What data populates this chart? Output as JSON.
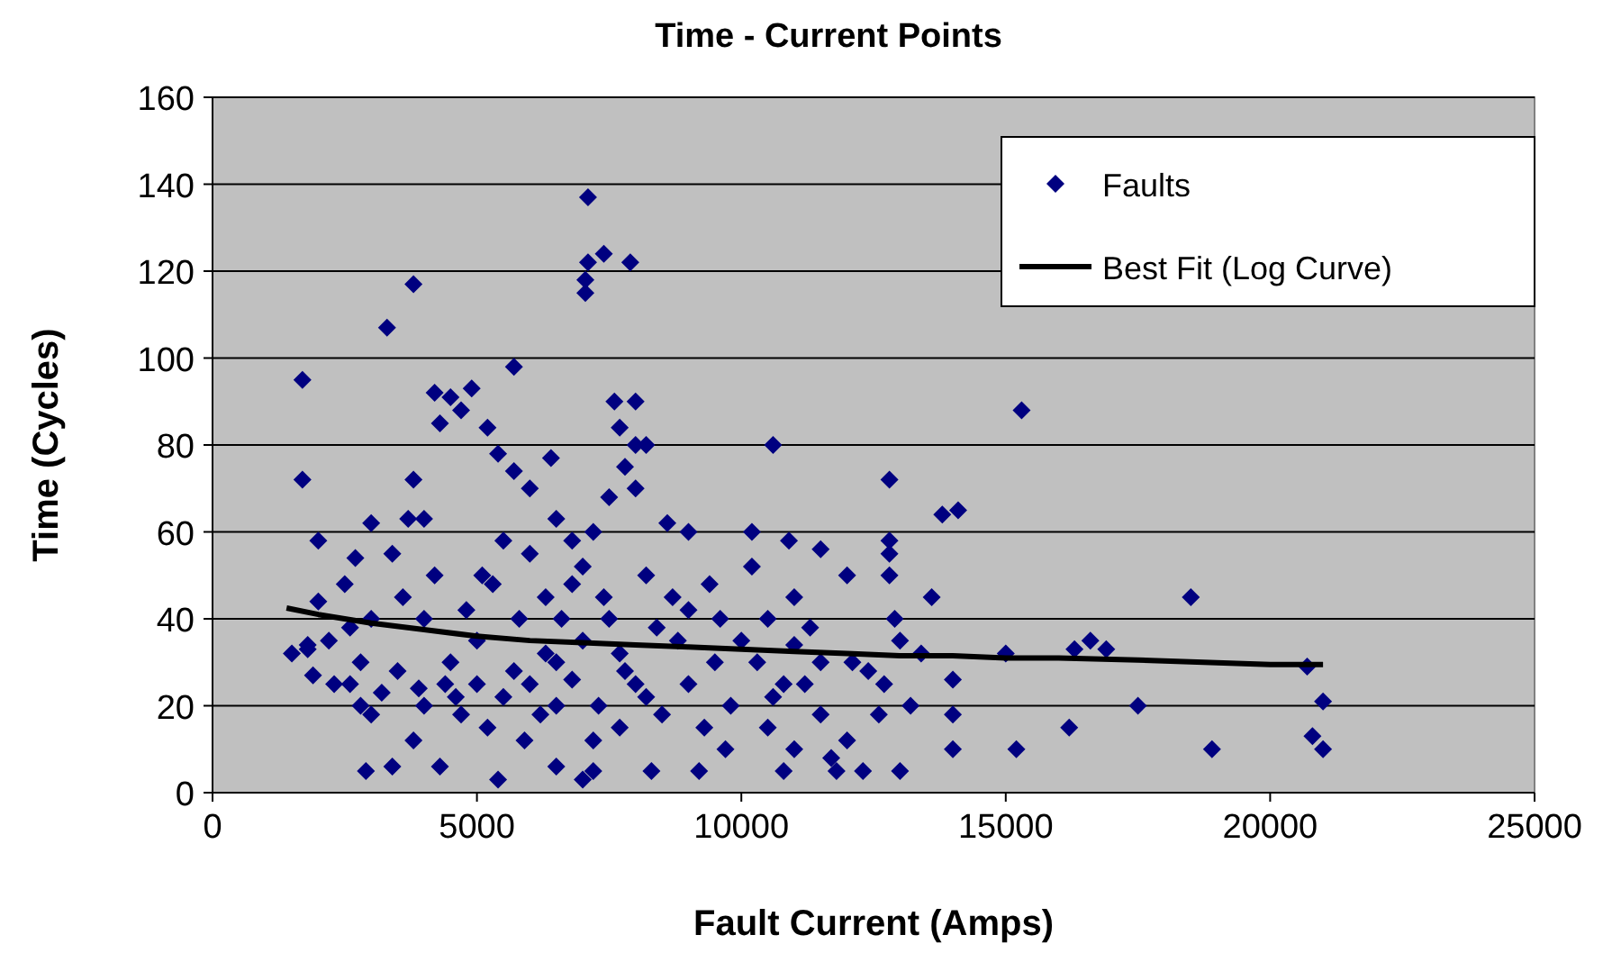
{
  "chart_data": {
    "type": "scatter",
    "title": "Time - Current Points",
    "xlabel": "Fault Current (Amps)",
    "ylabel": "Time (Cycles)",
    "xlim": [
      0,
      25000
    ],
    "xticks": [
      0,
      5000,
      10000,
      15000,
      20000,
      25000
    ],
    "ylim": [
      0,
      160
    ],
    "yticks": [
      0,
      20,
      40,
      60,
      80,
      100,
      120,
      140,
      160
    ],
    "grid": "y",
    "legend": "top right",
    "series": [
      {
        "name": "Faults",
        "marker": "diamond",
        "color": "#000080",
        "x": [
          7100,
          7100,
          7400,
          7900,
          7050,
          7050,
          3800,
          3300,
          1700,
          5700,
          1700,
          2000,
          4200,
          4500,
          4900,
          4300,
          4700,
          5200,
          3800,
          4000,
          3700,
          5700,
          5400,
          6400,
          6000,
          6500,
          7600,
          8000,
          7700,
          8000,
          8200,
          7800,
          8000,
          7500,
          8600,
          9000,
          7200,
          6800,
          10600,
          10200,
          10900,
          11500,
          12000,
          12800,
          12800,
          12800,
          12800,
          13800,
          14100,
          13600,
          15300,
          18500,
          14000,
          14000,
          14000,
          15000,
          15200,
          16300,
          16600,
          16900,
          17500,
          16200,
          18900,
          20700,
          21000,
          20800,
          21000,
          12900,
          13000,
          12700,
          12600,
          13200,
          12100,
          11200,
          11500,
          11000,
          10500,
          10800,
          11800,
          12300,
          9200,
          8300,
          7200,
          7000,
          6500,
          5400,
          4300,
          2900,
          3400,
          3800,
          2300,
          2600,
          1500,
          1800,
          2500,
          2700,
          3000,
          3400,
          3600,
          4000,
          3000,
          2600,
          2000,
          1800,
          2200,
          2800,
          3500,
          4000,
          4500,
          5000,
          5500,
          6000,
          6200,
          6500,
          7000,
          7500,
          7800,
          8200,
          8500,
          9000,
          9500,
          10000,
          10500,
          11000,
          11500,
          9800,
          9300,
          8700,
          8200,
          6800,
          6300,
          5800,
          5300,
          4800,
          4400,
          4700,
          5200,
          5900,
          6500,
          7200,
          7700,
          8000,
          8800,
          9600,
          10300,
          10800,
          11300,
          12000,
          11700,
          13000,
          4200,
          5500,
          6000,
          7000,
          7400,
          7700,
          6800,
          5700,
          5000,
          4600,
          3900,
          3200,
          2800,
          3000,
          1900,
          5100,
          6600,
          8400,
          9000,
          9400,
          10200,
          10600,
          9700,
          11000,
          13400,
          12400,
          7300,
          6300
        ],
        "values": [
          137,
          122,
          124,
          122,
          118,
          115,
          117,
          107,
          95,
          98,
          72,
          58,
          92,
          91,
          93,
          85,
          88,
          84,
          72,
          63,
          63,
          74,
          78,
          77,
          70,
          63,
          90,
          90,
          84,
          80,
          80,
          75,
          70,
          68,
          62,
          60,
          60,
          58,
          80,
          60,
          58,
          56,
          50,
          72,
          58,
          55,
          50,
          64,
          65,
          45,
          88,
          45,
          26,
          18,
          10,
          32,
          10,
          33,
          35,
          33,
          20,
          15,
          10,
          29,
          21,
          13,
          10,
          40,
          35,
          25,
          18,
          20,
          30,
          25,
          18,
          10,
          15,
          5,
          5,
          5,
          5,
          5,
          5,
          3,
          6,
          3,
          6,
          5,
          6,
          12,
          25,
          25,
          32,
          33,
          48,
          54,
          62,
          55,
          45,
          40,
          40,
          38,
          44,
          34,
          35,
          30,
          28,
          20,
          30,
          35,
          22,
          25,
          18,
          30,
          35,
          40,
          28,
          22,
          18,
          25,
          30,
          35,
          40,
          45,
          30,
          20,
          15,
          45,
          50,
          48,
          45,
          40,
          48,
          42,
          25,
          18,
          15,
          12,
          20,
          12,
          15,
          25,
          35,
          40,
          30,
          25,
          38,
          12,
          8,
          5,
          50,
          58,
          55,
          52,
          45,
          32,
          26,
          28,
          25,
          22,
          24,
          23,
          20,
          18,
          27,
          50,
          40,
          38,
          42,
          48,
          52,
          22,
          10,
          34,
          32,
          28,
          20,
          32
        ]
      },
      {
        "name": "Best Fit (Log Curve)",
        "type": "line",
        "marker": "none",
        "line_style": "solid",
        "color": "#000000",
        "x": [
          1400,
          2000,
          3000,
          4000,
          5000,
          6000,
          7000,
          8000,
          9000,
          10000,
          11000,
          12000,
          13000,
          14000,
          15000,
          16000,
          17500,
          20000,
          21000
        ],
        "values": [
          42.5,
          41,
          39,
          37.5,
          36,
          35,
          34.5,
          34,
          33.5,
          33,
          32.5,
          32,
          31.5,
          31.5,
          31,
          31,
          30.5,
          29.5,
          29.5
        ]
      }
    ]
  }
}
